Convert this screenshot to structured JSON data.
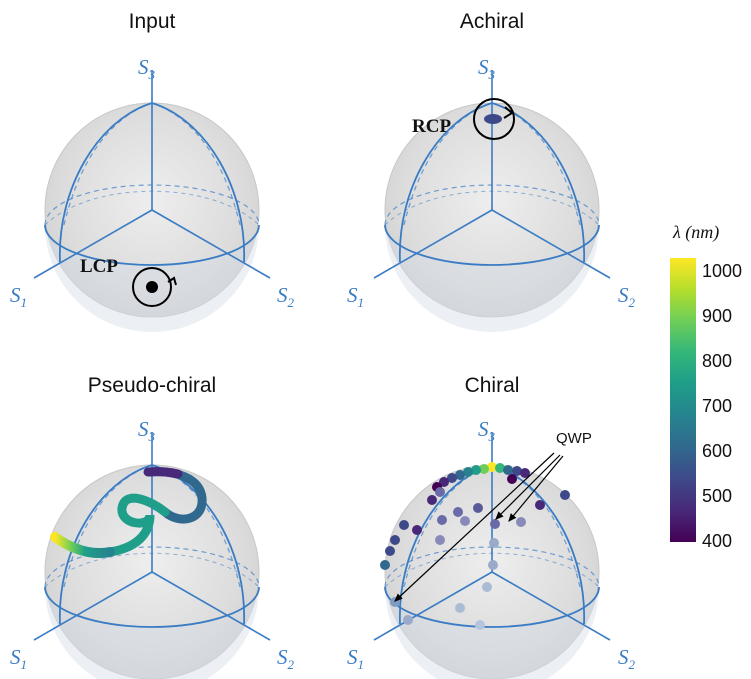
{
  "panels": [
    {
      "title": "Input",
      "axes": {
        "s1": "S",
        "s1_sub": "1",
        "s2": "S",
        "s2_sub": "2",
        "s3": "S",
        "s3_sub": "3"
      },
      "state_label": "LCP"
    },
    {
      "title": "Achiral",
      "axes": {
        "s1": "S",
        "s1_sub": "1",
        "s2": "S",
        "s2_sub": "2",
        "s3": "S",
        "s3_sub": "3"
      },
      "state_label": "RCP"
    },
    {
      "title": "Pseudo-chiral",
      "axes": {
        "s1": "S",
        "s1_sub": "1",
        "s2": "S",
        "s2_sub": "2",
        "s3": "S",
        "s3_sub": "3"
      }
    },
    {
      "title": "Chiral",
      "axes": {
        "s1": "S",
        "s1_sub": "1",
        "s2": "S",
        "s2_sub": "2",
        "s3": "S",
        "s3_sub": "3"
      },
      "annotation": "QWP"
    }
  ],
  "colorbar": {
    "title": "λ (nm)",
    "ticks": [
      "1000",
      "900",
      "800",
      "700",
      "600",
      "500",
      "400"
    ],
    "range": [
      400,
      1000
    ],
    "colormap": [
      "#440154",
      "#482878",
      "#3e4989",
      "#31688e",
      "#26828e",
      "#1f9e89",
      "#35b779",
      "#6ece58",
      "#b5de2b",
      "#fde725"
    ]
  },
  "colors": {
    "sphere_fill": "#d9d9d9",
    "axis": "#3a7cc4",
    "annotation_circle": "#000000"
  }
}
